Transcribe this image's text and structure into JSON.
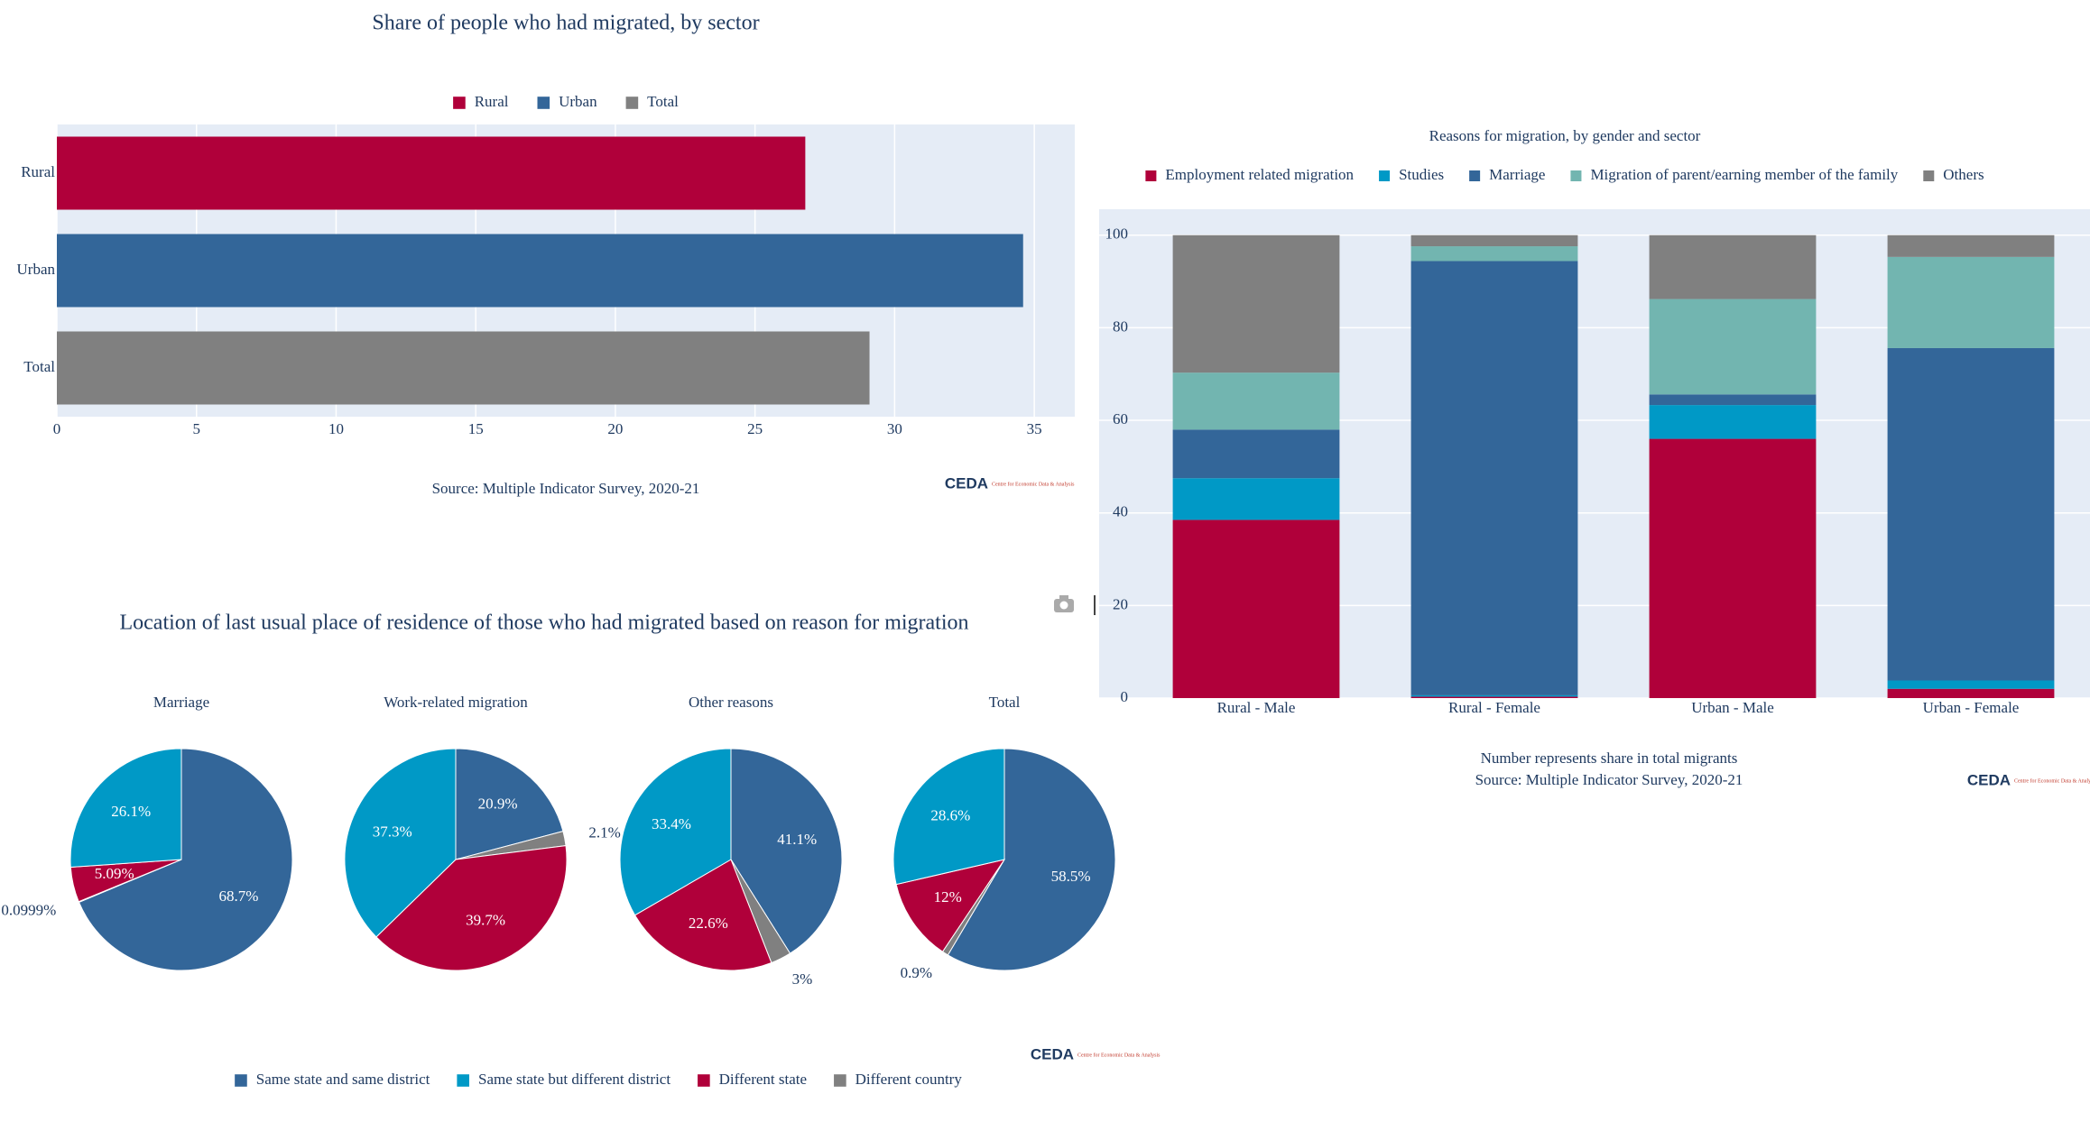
{
  "chart_data": [
    {
      "type": "hbar",
      "title": "Share of people who had migrated, by sector",
      "categories": [
        "Rural",
        "Urban",
        "Total"
      ],
      "values": [
        26.8,
        34.6,
        29.1
      ],
      "colors": [
        "#b0003a",
        "#336699",
        "#808080"
      ],
      "xlim": [
        0,
        36.45
      ],
      "xticks": [
        0,
        5,
        10,
        15,
        20,
        25,
        30,
        35
      ],
      "grid": true,
      "source": "Source: Multiple Indicator Survey, 2020-21",
      "logo": "CEDA",
      "logo_subtitle": "Centre for Economic Data & Analysis"
    },
    {
      "type": "stacked_bar",
      "title": "Reasons for migration, by gender and sector",
      "categories": [
        "Rural - Male",
        "Rural - Female",
        "Urban - Male",
        "Urban - Female"
      ],
      "series": [
        {
          "name": "Employment related migration",
          "color": "#b0003a",
          "values": [
            38.5,
            0.3,
            56,
            2
          ]
        },
        {
          "name": "Studies",
          "color": "#0099c6",
          "values": [
            9,
            0.3,
            7.3,
            1.8
          ]
        },
        {
          "name": "Marriage",
          "color": "#336699",
          "values": [
            10.5,
            93.8,
            2.3,
            71.8
          ]
        },
        {
          "name": "Migration of parent/earning member of the family",
          "color": "#72b5b0",
          "values": [
            12.3,
            3.2,
            20.6,
            19.7
          ]
        },
        {
          "name": "Others",
          "color": "#808080",
          "values": [
            29.7,
            2.4,
            13.8,
            4.7
          ]
        }
      ],
      "ylim": [
        0,
        105.6
      ],
      "yticks": [
        0,
        20,
        40,
        60,
        80,
        100
      ],
      "grid": true,
      "note": "Number represents share in total migrants",
      "source": "Source: Multiple Indicator Survey, 2020-21",
      "logo": "CEDA",
      "logo_subtitle": "Centre for Economic Data & Analysis"
    },
    {
      "type": "pie",
      "title": "Location of last usual place of residence of those who had migrated based on reason for migration",
      "categories": [
        "Same state and same district",
        "Same state but different district",
        "Different state",
        "Different country"
      ],
      "colors": [
        "#336699",
        "#0099c6",
        "#b0003a",
        "#808080"
      ],
      "pies": [
        {
          "title": "Marriage",
          "values": [
            68.7,
            26.1,
            5.09,
            0.0999
          ],
          "value_labels": [
            "68.7%",
            "26.1%",
            "5.09%",
            "0.0999%"
          ]
        },
        {
          "title": "Work-related migration",
          "values": [
            20.9,
            37.3,
            39.7,
            2.1
          ],
          "value_labels": [
            "20.9%",
            "37.3%",
            "39.7%",
            "2.1%"
          ]
        },
        {
          "title": "Other reasons",
          "values": [
            41.1,
            33.4,
            22.6,
            3
          ],
          "value_labels": [
            "41.1%",
            "33.4%",
            "22.6%",
            "3%"
          ]
        },
        {
          "title": "Total",
          "values": [
            58.5,
            28.6,
            12,
            0.9
          ],
          "value_labels": [
            "58.5%",
            "28.6%",
            "12%",
            "0.9%"
          ]
        }
      ],
      "logo": "CEDA",
      "logo_subtitle": "Centre for Economic Data & Analysis"
    }
  ]
}
